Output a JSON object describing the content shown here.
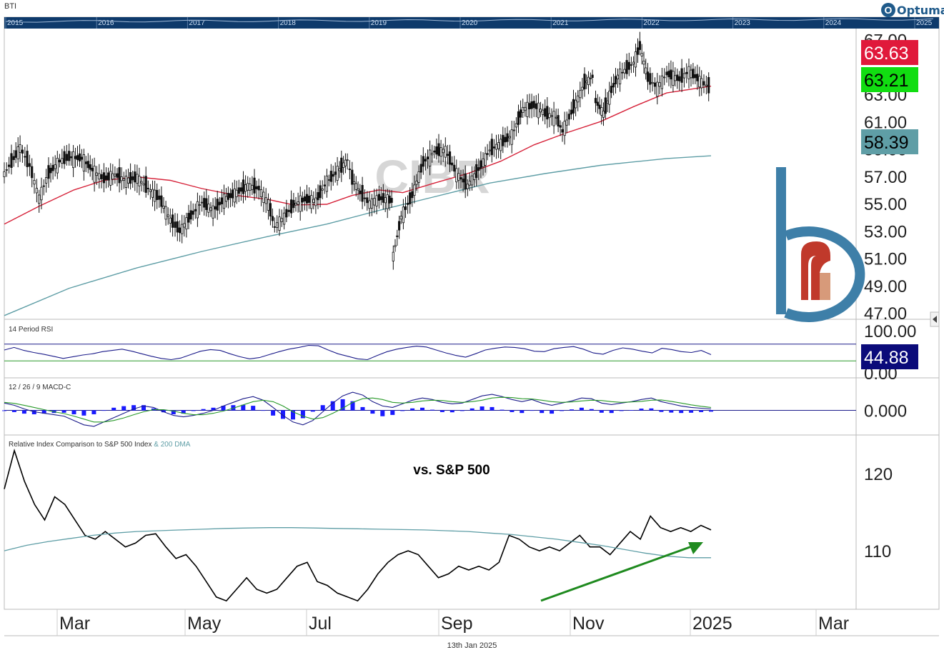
{
  "header": {
    "ticker": "BTI",
    "brand": "Optuma",
    "footer_date": "13th Jan 2025"
  },
  "colors": {
    "price_bars": "#111111",
    "ma50": "#d6233a",
    "ma200": "#5f9ea6",
    "rsi_line": "#1c1c8a",
    "macd_line": "#1c1c8a",
    "signal_line": "#2a9a2a",
    "histogram": "#1a1aff",
    "relative_line": "#000000",
    "relative_ma": "#5f9ea6",
    "arrow": "#1f8a1f",
    "navigator_bg": "#0e3a6b",
    "label_red": "#e0193b",
    "label_green": "#11dd11",
    "label_teal": "#5f9ea6",
    "label_navy": "#0b0b7a",
    "watermark_logo_blue": "#3e7fa8",
    "watermark_logo_red": "#c0392b"
  },
  "navigator": {
    "years": [
      "2015",
      "2016",
      "2017",
      "2018",
      "2019",
      "2020",
      "2021",
      "2022",
      "2023",
      "2024",
      "2025"
    ]
  },
  "chart_data": [
    {
      "type": "candlestick",
      "panel": "price",
      "watermark": "CIBR",
      "x_labels": [
        "Mar",
        "May",
        "Jul",
        "Sep",
        "Nov",
        "2025",
        "Mar"
      ],
      "y_ticks": [
        "67.00",
        "63.00",
        "61.00",
        "59.00",
        "57.00",
        "55.00",
        "53.00",
        "51.00",
        "49.00",
        "47.00"
      ],
      "ylim": [
        47,
        67.5
      ],
      "price_path": [
        [
          "2024-01-02",
          57.2
        ],
        [
          "2024-01-08",
          58.3
        ],
        [
          "2024-01-12",
          59.1
        ],
        [
          "2024-01-18",
          57.8
        ],
        [
          "2024-01-24",
          55.4
        ],
        [
          "2024-01-30",
          57.2
        ],
        [
          "2024-02-06",
          58.1
        ],
        [
          "2024-02-12",
          58.4
        ],
        [
          "2024-02-20",
          58.3
        ],
        [
          "2024-02-28",
          57.3
        ],
        [
          "2024-03-05",
          56.8
        ],
        [
          "2024-03-12",
          57.1
        ],
        [
          "2024-03-19",
          56.7
        ],
        [
          "2024-03-26",
          56.9
        ],
        [
          "2024-04-02",
          56.1
        ],
        [
          "2024-04-09",
          55.4
        ],
        [
          "2024-04-16",
          53.8
        ],
        [
          "2024-04-22",
          53.0
        ],
        [
          "2024-04-29",
          54.1
        ],
        [
          "2024-05-06",
          55.1
        ],
        [
          "2024-05-13",
          54.5
        ],
        [
          "2024-05-20",
          55.3
        ],
        [
          "2024-05-28",
          55.8
        ],
        [
          "2024-06-04",
          56.3
        ],
        [
          "2024-06-11",
          56.1
        ],
        [
          "2024-06-17",
          55.0
        ],
        [
          "2024-06-21",
          53.3
        ],
        [
          "2024-06-27",
          54.0
        ],
        [
          "2024-07-03",
          54.9
        ],
        [
          "2024-07-10",
          55.3
        ],
        [
          "2024-07-17",
          55.2
        ],
        [
          "2024-07-24",
          56.6
        ],
        [
          "2024-08-01",
          57.5
        ],
        [
          "2024-08-06",
          58.2
        ],
        [
          "2024-08-09",
          56.8
        ],
        [
          "2024-08-14",
          55.8
        ],
        [
          "2024-08-20",
          55.0
        ],
        [
          "2024-08-26",
          55.4
        ],
        [
          "2024-09-03",
          55.2
        ],
        [
          "2024-09-04",
          51.2
        ],
        [
          "2024-09-09",
          54.0
        ],
        [
          "2024-09-16",
          55.6
        ],
        [
          "2024-09-23",
          58.0
        ],
        [
          "2024-09-30",
          58.8
        ],
        [
          "2024-10-07",
          58.9
        ],
        [
          "2024-10-14",
          57.2
        ],
        [
          "2024-10-21",
          56.3
        ],
        [
          "2024-10-28",
          57.5
        ],
        [
          "2024-11-04",
          58.9
        ],
        [
          "2024-11-11",
          59.4
        ],
        [
          "2024-11-18",
          60.0
        ],
        [
          "2024-11-25",
          61.9
        ],
        [
          "2024-12-02",
          62.2
        ],
        [
          "2024-12-09",
          61.6
        ],
        [
          "2024-12-16",
          61.3
        ],
        [
          "2024-12-20",
          60.3
        ],
        [
          "2024-12-27",
          62.0
        ],
        [
          "2025-01-03",
          63.8
        ],
        [
          "2025-01-08",
          64.3
        ],
        [
          "2025-01-10",
          62.5
        ],
        [
          "2025-01-15",
          61.6
        ],
        [
          "2025-01-20",
          63.3
        ],
        [
          "2025-01-24",
          64.3
        ],
        [
          "2025-02-03",
          65.3
        ],
        [
          "2025-02-07",
          66.5
        ],
        [
          "2025-02-12",
          64.2
        ],
        [
          "2025-02-18",
          63.5
        ],
        [
          "2025-02-24",
          64.5
        ],
        [
          "2025-03-04",
          64.1
        ],
        [
          "2025-03-10",
          64.7
        ],
        [
          "2025-03-18",
          63.9
        ],
        [
          "2025-03-24",
          63.4
        ]
      ],
      "series": [
        {
          "name": "50 DMA",
          "color": "#d6233a",
          "points": [
            [
              "2024-01-02",
              53.5
            ],
            [
              "2024-01-24",
              54.8
            ],
            [
              "2024-02-15",
              56.0
            ],
            [
              "2024-03-05",
              56.7
            ],
            [
              "2024-03-26",
              56.95
            ],
            [
              "2024-04-16",
              56.7
            ],
            [
              "2024-05-06",
              56.1
            ],
            [
              "2024-05-28",
              55.6
            ],
            [
              "2024-06-17",
              55.3
            ],
            [
              "2024-07-03",
              54.9
            ],
            [
              "2024-07-24",
              54.95
            ],
            [
              "2024-08-09",
              55.6
            ],
            [
              "2024-08-26",
              56.0
            ],
            [
              "2024-09-10",
              55.8
            ],
            [
              "2024-09-30",
              56.5
            ],
            [
              "2024-10-21",
              57.2
            ],
            [
              "2024-11-11",
              58.1
            ],
            [
              "2024-12-02",
              59.3
            ],
            [
              "2024-12-23",
              60.2
            ],
            [
              "2025-01-13",
              61.0
            ],
            [
              "2025-02-03",
              62.1
            ],
            [
              "2025-02-24",
              63.1
            ],
            [
              "2025-03-24",
              63.6
            ]
          ]
        },
        {
          "name": "200 DMA",
          "color": "#5f9ea6",
          "points": [
            [
              "2024-01-02",
              46.8
            ],
            [
              "2024-02-12",
              48.8
            ],
            [
              "2024-03-26",
              50.3
            ],
            [
              "2024-05-06",
              51.5
            ],
            [
              "2024-06-17",
              52.6
            ],
            [
              "2024-07-24",
              53.5
            ],
            [
              "2024-08-26",
              54.5
            ],
            [
              "2024-09-30",
              55.5
            ],
            [
              "2024-11-04",
              56.5
            ],
            [
              "2024-12-09",
              57.2
            ],
            [
              "2025-01-13",
              57.8
            ],
            [
              "2025-02-24",
              58.3
            ],
            [
              "2025-03-24",
              58.5
            ]
          ]
        }
      ],
      "last_values": [
        "63.63",
        "63.21",
        "58.39"
      ]
    },
    {
      "type": "line",
      "panel": "rsi",
      "title": "14 Period RSI",
      "y_ticks": [
        "100.00",
        "0.00"
      ],
      "ylim": [
        0,
        100
      ],
      "upper_band": 70,
      "lower_band": 30,
      "values": [
        56,
        62,
        55,
        50,
        46,
        41,
        36,
        40,
        44,
        47,
        52,
        55,
        58,
        53,
        47,
        41,
        36,
        33,
        37,
        45,
        53,
        57,
        55,
        47,
        40,
        35,
        38,
        45,
        52,
        58,
        62,
        67,
        66,
        56,
        47,
        41,
        35,
        33,
        43,
        52,
        58,
        62,
        65,
        63,
        56,
        49,
        43,
        39,
        47,
        56,
        60,
        63,
        62,
        59,
        53,
        52,
        59,
        62,
        64,
        58,
        49,
        46,
        55,
        61,
        58,
        53,
        49,
        60,
        57,
        52,
        50,
        55,
        44.88
      ],
      "last_value": "44.88"
    },
    {
      "type": "line+bar",
      "panel": "macd",
      "title": "12 / 26 / 9 MACD-C",
      "y_ticks": [
        "0.000"
      ],
      "ylim": [
        -1.5,
        1.5
      ],
      "series": [
        {
          "name": "MACD",
          "color": "#1c1c8a",
          "values": [
            0.5,
            0.35,
            0.1,
            -0.1,
            -0.2,
            -0.3,
            -0.4,
            -0.7,
            -1.0,
            -1.1,
            -0.8,
            -0.5,
            -0.2,
            0.1,
            0.3,
            0.2,
            -0.1,
            -0.35,
            -0.45,
            -0.35,
            -0.2,
            0.0,
            0.3,
            0.55,
            0.8,
            0.95,
            0.7,
            0.2,
            -0.35,
            -0.8,
            -1.0,
            -0.7,
            -0.1,
            0.5,
            1.0,
            1.25,
            1.05,
            0.6,
            0.3,
            0.2,
            0.45,
            0.7,
            0.85,
            0.75,
            0.55,
            0.45,
            0.5,
            0.75,
            1.0,
            1.1,
            0.95,
            0.75,
            0.6,
            0.75,
            0.5,
            0.35,
            0.5,
            0.65,
            0.85,
            0.8,
            0.5,
            0.4,
            0.5,
            0.6,
            0.75,
            0.85,
            0.6,
            0.45,
            0.3,
            0.2,
            0.15,
            0.1
          ]
        },
        {
          "name": "Signal",
          "color": "#2a9a2a",
          "values": [
            0.55,
            0.48,
            0.35,
            0.2,
            0.05,
            -0.1,
            -0.22,
            -0.4,
            -0.6,
            -0.8,
            -0.8,
            -0.7,
            -0.52,
            -0.3,
            -0.1,
            0.05,
            0.05,
            -0.05,
            -0.2,
            -0.3,
            -0.3,
            -0.2,
            -0.05,
            0.15,
            0.38,
            0.6,
            0.7,
            0.6,
            0.3,
            -0.1,
            -0.4,
            -0.6,
            -0.5,
            -0.2,
            0.15,
            0.55,
            0.8,
            0.85,
            0.75,
            0.55,
            0.5,
            0.55,
            0.65,
            0.7,
            0.68,
            0.6,
            0.55,
            0.6,
            0.7,
            0.85,
            0.9,
            0.88,
            0.8,
            0.78,
            0.7,
            0.6,
            0.55,
            0.58,
            0.65,
            0.7,
            0.68,
            0.6,
            0.55,
            0.58,
            0.62,
            0.7,
            0.72,
            0.62,
            0.5,
            0.38,
            0.28,
            0.2
          ]
        }
      ],
      "last_value": "0.000"
    },
    {
      "type": "line",
      "panel": "relative",
      "title": "Relative Index Comparison to S&P 500 Index",
      "title_suffix": "& 200 DMA",
      "annotation": "vs. S&P 500",
      "y_ticks": [
        "120",
        "110"
      ],
      "ylim": [
        102.5,
        124
      ],
      "series": [
        {
          "name": "Relative to S&P 500",
          "color": "#000000",
          "values": [
            118,
            123,
            119,
            116,
            114,
            117,
            116,
            114,
            112,
            111.5,
            112.5,
            111.5,
            110.5,
            111,
            112,
            112.2,
            110.5,
            109,
            109.5,
            108,
            106,
            104,
            103.5,
            105,
            106.5,
            105,
            104.5,
            105,
            106.5,
            108,
            108.5,
            106,
            105.5,
            104.5,
            104,
            103.5,
            105,
            107,
            108.5,
            109.5,
            110,
            109.5,
            108,
            106.5,
            107,
            108,
            107.5,
            108,
            107.5,
            108.5,
            112,
            111.5,
            110.5,
            110,
            110.5,
            110,
            111,
            112,
            110.5,
            110.5,
            109.5,
            111,
            112.5,
            111.5,
            114.5,
            113,
            112.5,
            113,
            112.5,
            113.3,
            112.7
          ]
        },
        {
          "name": "200 DMA",
          "color": "#5f9ea6",
          "values": [
            110,
            110.7,
            111.2,
            111.6,
            112.0,
            112.3,
            112.5,
            112.6,
            112.7,
            112.8,
            112.9,
            112.95,
            113.0,
            113.0,
            112.95,
            112.9,
            112.85,
            112.8,
            112.75,
            112.7,
            112.6,
            112.5,
            112.3,
            112.1,
            111.8,
            111.5,
            111.1,
            110.7,
            110.2,
            109.7,
            109.3,
            109.1,
            109.1
          ]
        }
      ]
    }
  ]
}
